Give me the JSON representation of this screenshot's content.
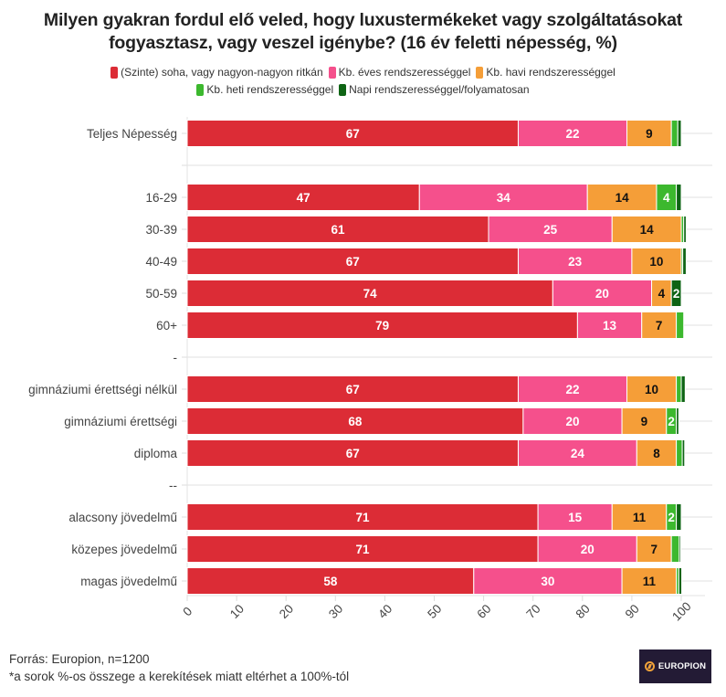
{
  "chart_data": {
    "type": "bar",
    "orientation": "horizontal",
    "stacked": true,
    "title": "Milyen gyakran fordul elő veled, hogy luxustermékeket vagy szolgáltatásokat fogyasztasz, vagy veszel igénybe? (16 év feletti népesség, %)",
    "title_lines": [
      "Milyen gyakran fordul elő veled, hogy luxustermékeket vagy szolgáltatásokat",
      "fogyasztasz, vagy veszel igénybe? (16 év feletti népesség, %)"
    ],
    "xlabel": "",
    "ylabel": "",
    "xlim": [
      0,
      100
    ],
    "x_ticks": [
      0,
      10,
      20,
      30,
      40,
      50,
      60,
      70,
      80,
      90,
      100
    ],
    "grid": true,
    "legend_position": "top",
    "categories": [
      "Teljes Népesség",
      "",
      "16-29",
      "30-39",
      "40-49",
      "50-59",
      "60+",
      "-",
      "gimnáziumi érettségi nélkül",
      "gimnáziumi érettségi",
      "diploma",
      "--",
      "alacsony jövedelmű",
      "közepes jövedelmű",
      "magas jövedelmű"
    ],
    "series": [
      {
        "name": "(Szinte) soha, vagy nagyon-nagyon ritkán",
        "color": "#DC2C36",
        "label_color": "#ffffff",
        "values": [
          67,
          null,
          47,
          61,
          67,
          74,
          79,
          null,
          67,
          68,
          67,
          null,
          71,
          71,
          58
        ]
      },
      {
        "name": "Kb. éves rendszerességgel",
        "color": "#F5508C",
        "label_color": "#ffffff",
        "values": [
          22,
          null,
          34,
          25,
          23,
          20,
          13,
          null,
          22,
          20,
          24,
          null,
          15,
          20,
          30
        ]
      },
      {
        "name": "Kb. havi rendszerességgel",
        "color": "#F59E38",
        "label_color": "#111111",
        "values": [
          9,
          null,
          14,
          14,
          10,
          4,
          7,
          null,
          10,
          9,
          8,
          null,
          11,
          7,
          11
        ]
      },
      {
        "name": "Kb. heti rendszerességgel",
        "color": "#3CB82E",
        "label_color": "#ffffff",
        "values": [
          1.3,
          null,
          4,
          0.5,
          0.3,
          0,
          1.5,
          null,
          1,
          2,
          1.2,
          null,
          2,
          1.6,
          0.5
        ]
      },
      {
        "name": "Napi rendszerességgel/folyamatosan",
        "color": "#0E6414",
        "label_color": "#ffffff",
        "values": [
          0.7,
          null,
          1,
          0.5,
          0.7,
          2,
          0,
          null,
          0.8,
          0.5,
          0.5,
          null,
          1,
          0.3,
          0.6
        ]
      }
    ],
    "data_labels_min_value": 2
  },
  "legend": {
    "row1": [
      0,
      1,
      2
    ],
    "row2": [
      3,
      4
    ]
  },
  "footer": {
    "source": "Forrás: Europion, n=1200",
    "note": "*a sorok %-os összege a kerekítések miatt eltérhet a 100%-tól"
  },
  "logo": {
    "text": "EUROPION"
  }
}
